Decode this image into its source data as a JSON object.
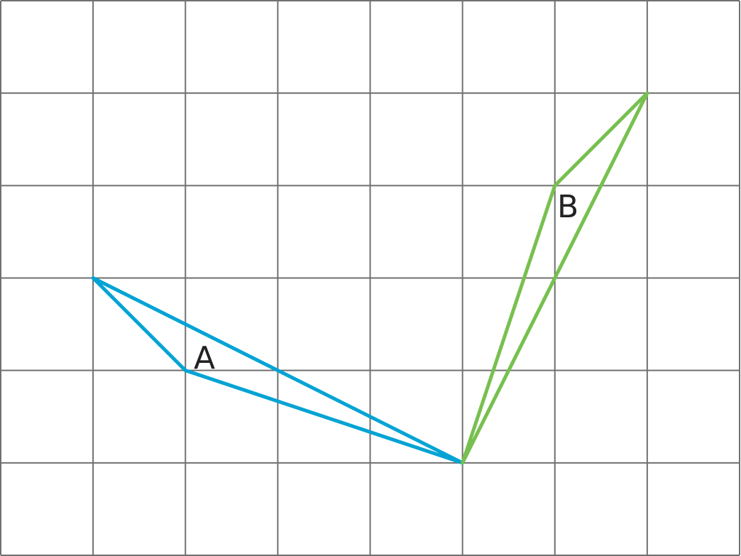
{
  "grid": {
    "columns": 8,
    "rows": 6,
    "line_color": "#707070"
  },
  "shapes": [
    {
      "label": "A",
      "color": "#00a3d4",
      "vertices": [
        [
          1,
          3
        ],
        [
          2,
          4
        ],
        [
          5,
          5
        ]
      ]
    },
    {
      "label": "B",
      "color": "#77c04f",
      "vertices": [
        [
          5,
          5
        ],
        [
          6,
          2
        ],
        [
          7,
          1
        ]
      ]
    }
  ]
}
